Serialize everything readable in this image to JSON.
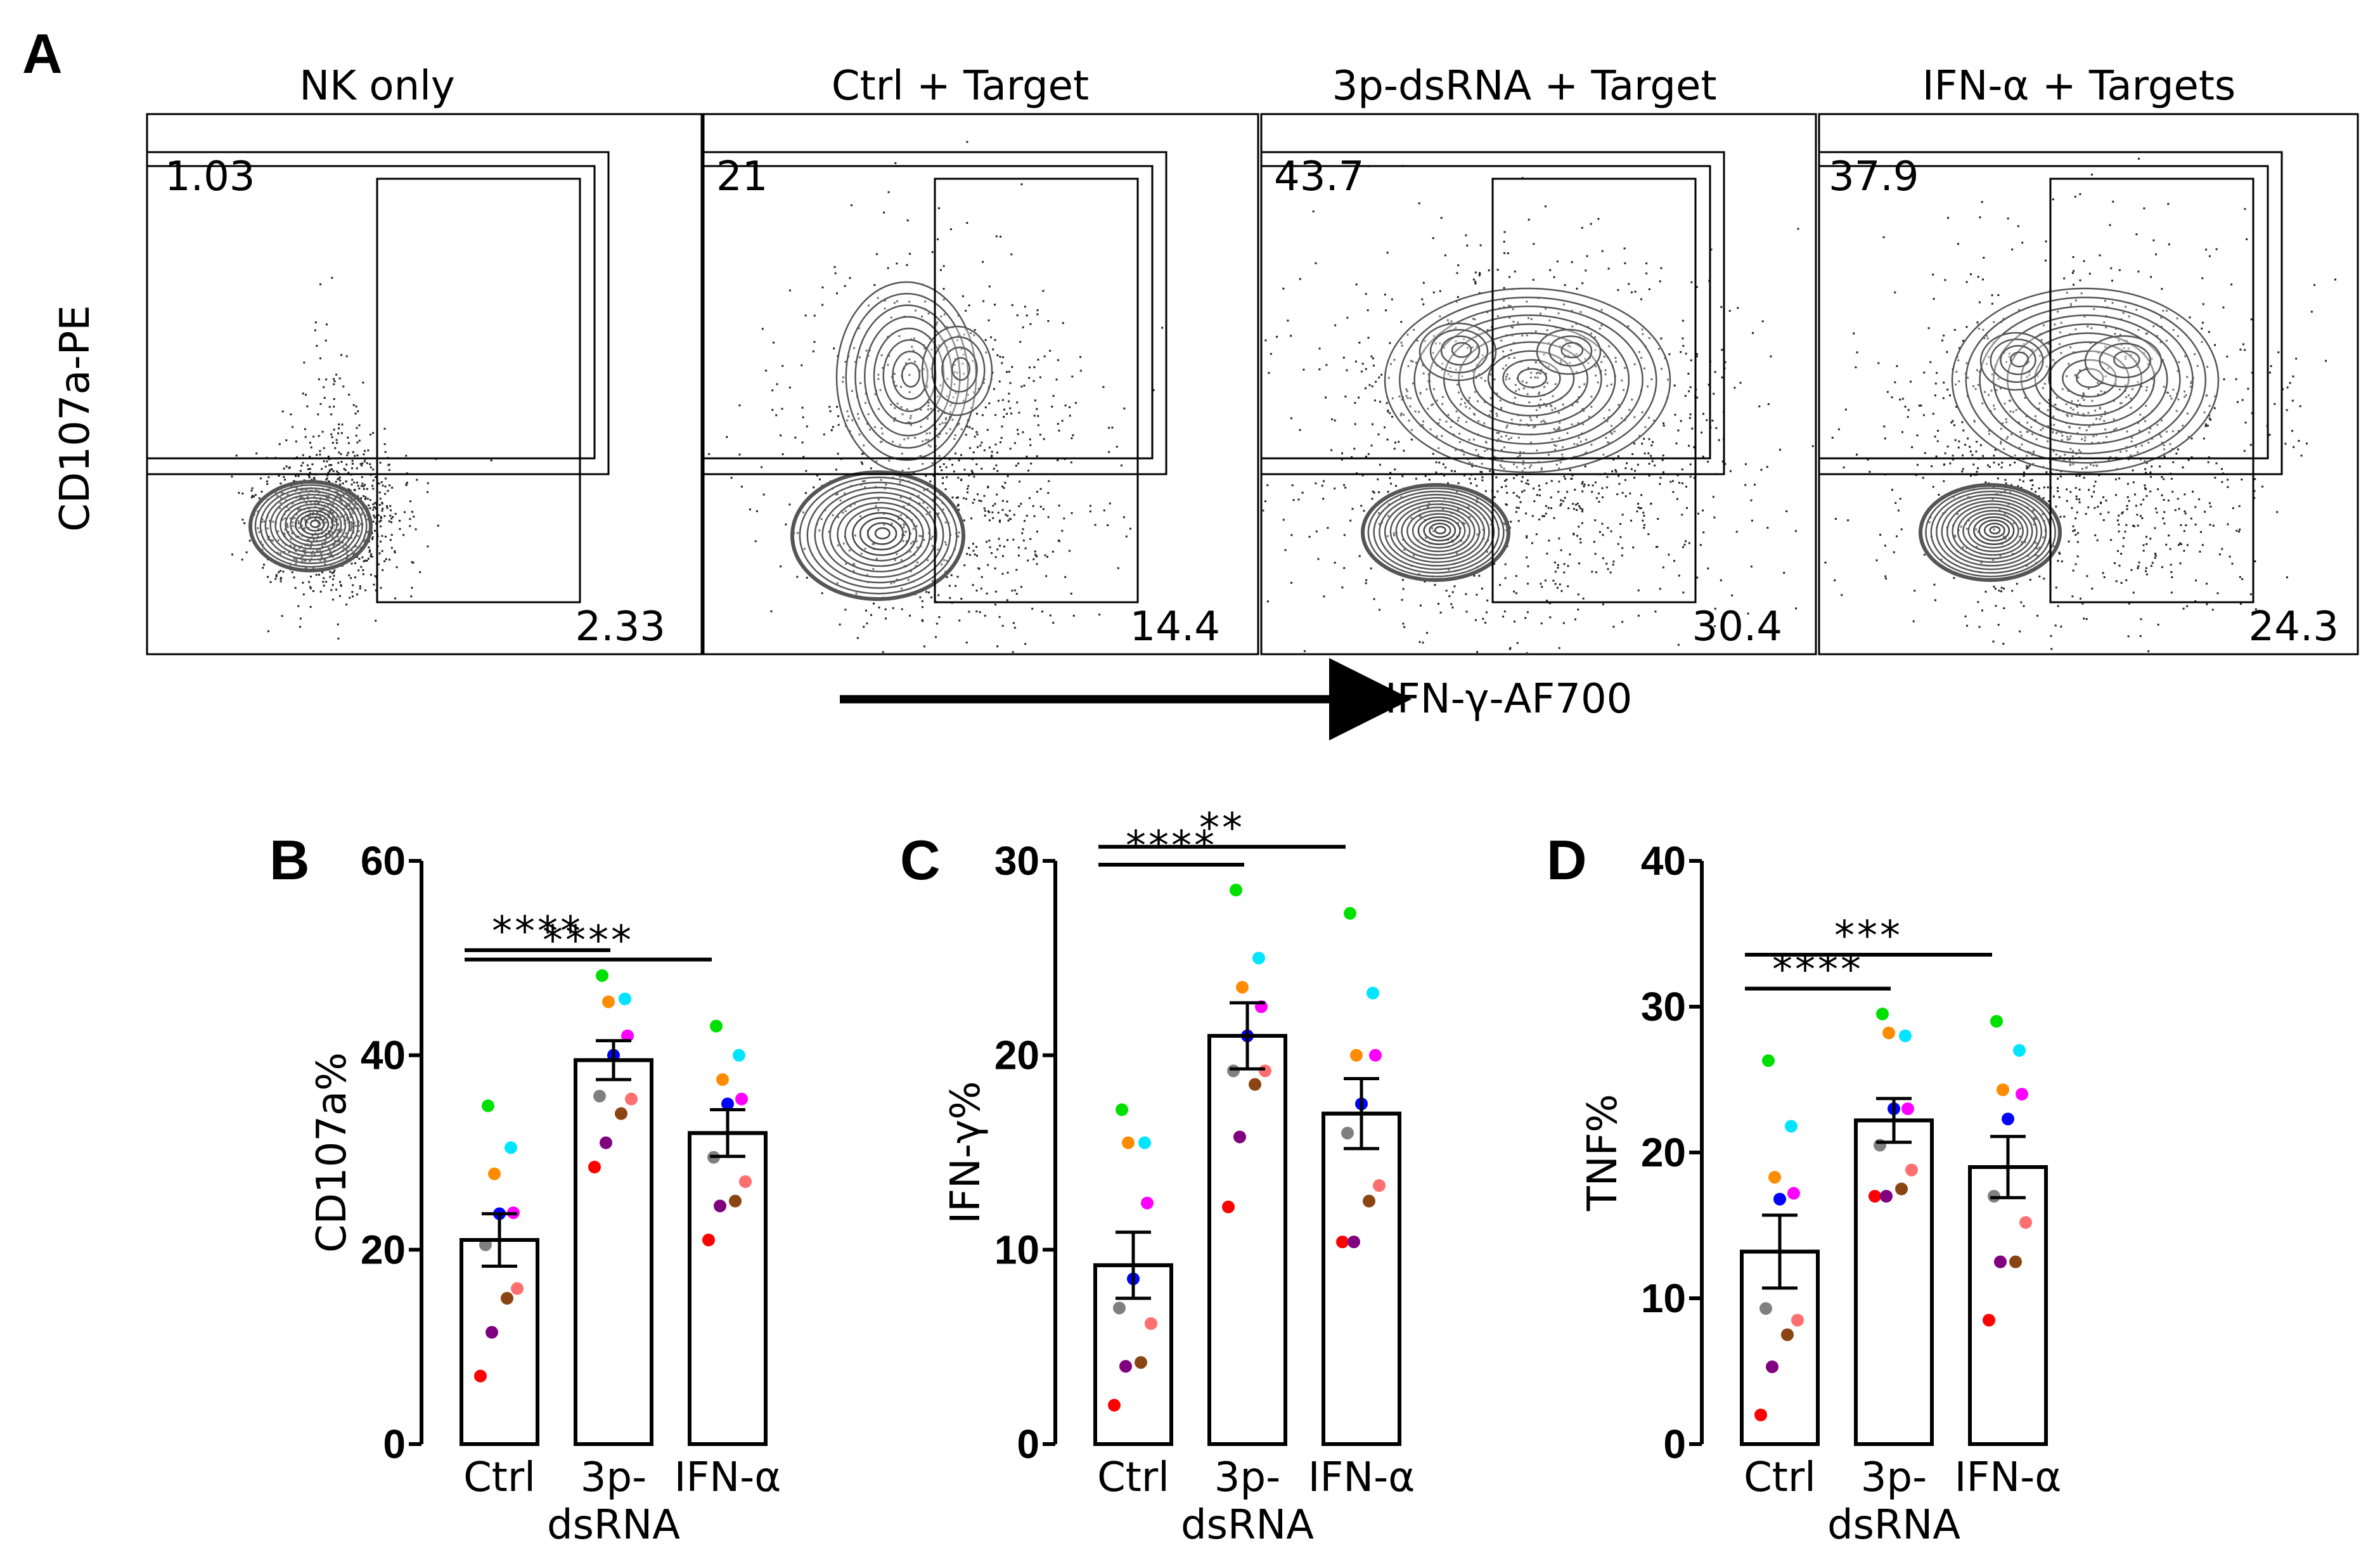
{
  "panels": {
    "a": "A",
    "b": "B",
    "c": "C",
    "d": "D"
  },
  "flow": {
    "y_axis_label": "CD107a-PE",
    "x_axis_label": "IFN-γ-AF700",
    "plots": [
      {
        "title": "NK only",
        "upper_left": "1.03",
        "lower_right": "2.33"
      },
      {
        "title": "Ctrl + Target",
        "upper_left": "21",
        "lower_right": "14.4"
      },
      {
        "title": "3p-dsRNA + Target",
        "upper_left": "43.7",
        "lower_right": "30.4"
      },
      {
        "title": "IFN-α + Targets",
        "upper_left": "37.9",
        "lower_right": "24.3"
      }
    ]
  },
  "colors": {
    "donors": [
      "#ff0000",
      "#800080",
      "#8b4513",
      "#ff6f6f",
      "#808080",
      "#0000ff",
      "#ff00ff",
      "#ff8c00",
      "#00e5ff",
      "#00e000"
    ]
  },
  "chart_data": [
    {
      "type": "bar",
      "panel": "B",
      "ylabel": "CD107a%",
      "ylim": [
        0,
        60
      ],
      "yticks": [
        "0",
        "20",
        "40",
        "60"
      ],
      "categories": [
        "Ctrl",
        "3p-dsRNA",
        "IFN-α"
      ],
      "category_lines": [
        [
          "Ctrl"
        ],
        [
          "3p-",
          "dsRNA"
        ],
        [
          "IFN-α"
        ]
      ],
      "means": [
        21,
        39.5,
        32
      ],
      "sem": [
        2.7,
        2.0,
        2.4
      ],
      "points": [
        [
          7,
          11.5,
          15,
          16,
          20.5,
          23.7,
          23.8,
          27.8,
          30.5,
          34.8
        ],
        [
          28.5,
          31,
          34,
          35.5,
          35.8,
          40,
          42,
          45.5,
          45.8,
          48.2
        ],
        [
          21,
          24.5,
          25,
          27,
          29.5,
          35,
          35.5,
          37.5,
          40,
          43
        ]
      ],
      "significance": [
        {
          "from": 0,
          "to": 1,
          "label": "****"
        },
        {
          "from": 0,
          "to": 2,
          "label": "****"
        }
      ]
    },
    {
      "type": "bar",
      "panel": "C",
      "ylabel": "IFN-γ%",
      "ylim": [
        0,
        30
      ],
      "yticks": [
        "0",
        "10",
        "20",
        "30"
      ],
      "categories": [
        "Ctrl",
        "3p-dsRNA",
        "IFN-α"
      ],
      "category_lines": [
        [
          "Ctrl"
        ],
        [
          "3p-",
          "dsRNA"
        ],
        [
          "IFN-α"
        ]
      ],
      "means": [
        9.2,
        21,
        17
      ],
      "sem": [
        1.7,
        1.7,
        1.8
      ],
      "points": [
        [
          2,
          4,
          4.2,
          6.2,
          7,
          8.5,
          12.4,
          15.5,
          15.5,
          17.2
        ],
        [
          12.2,
          15.8,
          18.5,
          19.2,
          19.2,
          21,
          22.5,
          23.5,
          25,
          28.5
        ],
        [
          10.4,
          10.4,
          12.5,
          13.3,
          16,
          17.5,
          20,
          20,
          23.2,
          27.3
        ]
      ],
      "significance": [
        {
          "from": 0,
          "to": 1,
          "label": "****"
        },
        {
          "from": 0,
          "to": 2,
          "label": "**"
        }
      ]
    },
    {
      "type": "bar",
      "panel": "D",
      "ylabel": "TNF%",
      "ylim": [
        0,
        40
      ],
      "yticks": [
        "0",
        "10",
        "20",
        "30",
        "40"
      ],
      "categories": [
        "Ctrl",
        "3p-dsRNA",
        "IFN-α"
      ],
      "category_lines": [
        [
          "Ctrl"
        ],
        [
          "3p-",
          "dsRNA"
        ],
        [
          "IFN-α"
        ]
      ],
      "means": [
        13.2,
        22.2,
        19
      ],
      "sem": [
        2.5,
        1.5,
        2.1
      ],
      "points": [
        [
          2,
          5.3,
          7.5,
          8.5,
          9.3,
          16.8,
          17.2,
          18.3,
          21.8,
          26.3
        ],
        [
          17,
          17,
          17.5,
          18.8,
          20.5,
          23,
          23,
          28.2,
          28,
          29.5
        ],
        [
          8.5,
          12.5,
          12.5,
          15.2,
          17,
          22.3,
          24,
          24.3,
          27,
          29
        ]
      ],
      "significance": [
        {
          "from": 0,
          "to": 1,
          "label": "****"
        },
        {
          "from": 0,
          "to": 2,
          "label": "***"
        }
      ]
    }
  ]
}
